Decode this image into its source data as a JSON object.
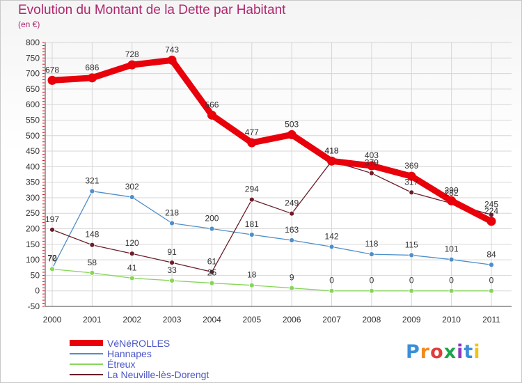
{
  "title": "Evolution du Montant de la Dette par Habitant",
  "subtitle": "(en €)",
  "logo": {
    "letters": [
      "P",
      "r",
      "o",
      "x",
      "i",
      "t",
      "i"
    ],
    "colors": [
      "#3a8fd8",
      "#f08a1c",
      "#e23b3b",
      "#1aa64a",
      "#8a3ab9",
      "#3a8fd8",
      "#f0c419"
    ]
  },
  "chart_data": {
    "type": "line",
    "x": [
      "2000",
      "2001",
      "2002",
      "2003",
      "2004",
      "2005",
      "2006",
      "2007",
      "2008",
      "2009",
      "2010",
      "2011"
    ],
    "ylim": [
      -50,
      800
    ],
    "yticks": [
      -50,
      0,
      50,
      100,
      150,
      200,
      250,
      300,
      350,
      400,
      450,
      500,
      550,
      600,
      650,
      700,
      750,
      800
    ],
    "grid": true,
    "legend_position": "bottom-left",
    "series": [
      {
        "name": "VéNéROLLES",
        "color": "#e8000b",
        "values": [
          678,
          686,
          728,
          743,
          566,
          477,
          503,
          418,
          403,
          369,
          290,
          224
        ],
        "labels": [
          "678",
          "686",
          "728",
          "743",
          "566",
          "477",
          "503",
          "418",
          "403",
          "369",
          "290",
          "224"
        ]
      },
      {
        "name": "Hannapes",
        "color": "#4f8fc9",
        "values": [
          72,
          321,
          302,
          218,
          200,
          181,
          163,
          142,
          118,
          115,
          101,
          84
        ],
        "labels": [
          "72",
          "321",
          "302",
          "218",
          "200",
          "181",
          "163",
          "142",
          "118",
          "115",
          "101",
          "84"
        ]
      },
      {
        "name": "Étreux",
        "color": "#86d65a",
        "values": [
          70,
          58,
          41,
          33,
          25,
          18,
          9,
          0,
          0,
          0,
          0,
          0
        ],
        "labels": [
          "70",
          "58",
          "41",
          "33",
          "25",
          "18",
          "9",
          "0",
          "0",
          "0",
          "0",
          "0"
        ]
      },
      {
        "name": "La Neuville-lès-Dorengt",
        "color": "#6b1d2a",
        "values": [
          197,
          148,
          120,
          91,
          61,
          294,
          249,
          418,
          379,
          317,
          282,
          245
        ],
        "labels": [
          "197",
          "148",
          "120",
          "91",
          "61",
          "294",
          "249",
          "418",
          "379",
          "317",
          "282",
          "245"
        ]
      }
    ]
  }
}
